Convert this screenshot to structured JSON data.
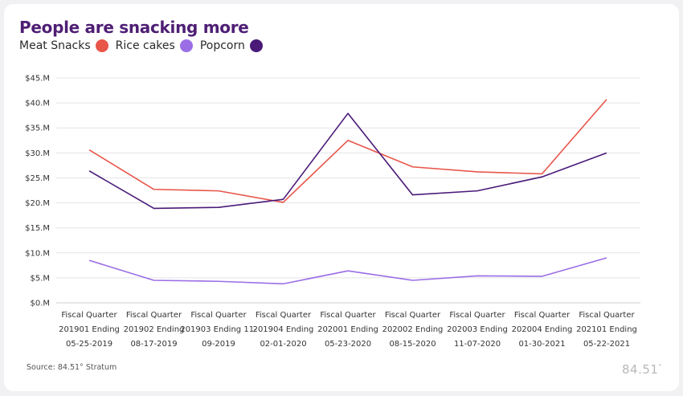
{
  "title": "People are snacking more",
  "source": "Source: 84.51° Stratum",
  "logo": "84.51°",
  "colors": {
    "meat_snacks": "#e8564a",
    "rice_cakes": "#9b6ee6",
    "popcorn": "#4a1a78"
  },
  "chart_data": {
    "type": "line",
    "title": "People are snacking more",
    "categories": [
      [
        "Fiscal Quarter",
        "201901 Ending",
        "05-25-2019"
      ],
      [
        "Fiscal Quarter",
        "201902 Ending",
        "08-17-2019"
      ],
      [
        "Fiscal Quarter",
        "201903 Ending 11-",
        "09-2019"
      ],
      [
        "Fiscal Quarter",
        "201904 Ending",
        "02-01-2020"
      ],
      [
        "Fiscal Quarter",
        "202001 Ending",
        "05-23-2020"
      ],
      [
        "Fiscal Quarter",
        "202002 Ending",
        "08-15-2020"
      ],
      [
        "Fiscal Quarter",
        "202003 Ending",
        "11-07-2020"
      ],
      [
        "Fiscal Quarter",
        "202004 Ending",
        "01-30-2021"
      ],
      [
        "Fiscal Quarter",
        "202101 Ending",
        "05-22-2021"
      ]
    ],
    "y_ticks": [
      "$0.M",
      "$5.M",
      "$10.M",
      "$15.M",
      "$20.M",
      "$25.M",
      "$30.M",
      "$35.M",
      "$40.M",
      "$45.M"
    ],
    "ylim": [
      0,
      45
    ],
    "grid": true,
    "legend_position": "top-left",
    "series": [
      {
        "name": "Meat Snacks",
        "color": "#e8564a",
        "values": [
          30.6,
          22.7,
          22.4,
          20.1,
          32.5,
          27.2,
          26.2,
          25.8,
          40.7
        ]
      },
      {
        "name": "Rice cakes",
        "color": "#9b6ee6",
        "values": [
          8.5,
          4.5,
          4.3,
          3.8,
          6.4,
          4.5,
          5.4,
          5.3,
          9.0
        ]
      },
      {
        "name": "Popcorn",
        "color": "#4a1a78",
        "values": [
          26.4,
          18.9,
          19.1,
          20.7,
          37.9,
          21.6,
          22.4,
          25.2,
          30.0
        ]
      }
    ]
  }
}
